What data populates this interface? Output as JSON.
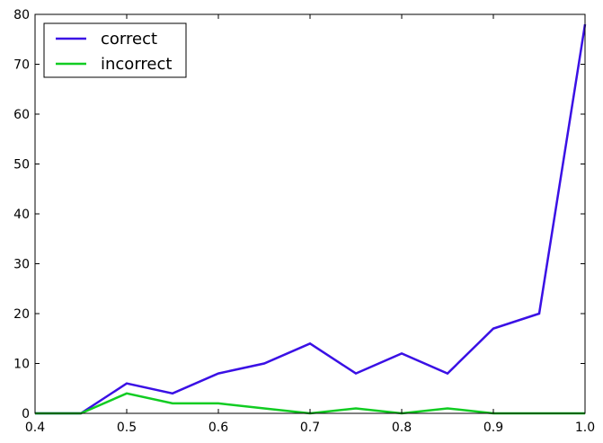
{
  "chart_data": {
    "type": "line",
    "title": "",
    "xlabel": "",
    "ylabel": "",
    "xlim": [
      0.4,
      1.0
    ],
    "ylim": [
      0,
      80
    ],
    "xticks": [
      0.4,
      0.5,
      0.6,
      0.7,
      0.8,
      0.9,
      1.0
    ],
    "xtick_labels": [
      "0.4",
      "0.5",
      "0.6",
      "0.7",
      "0.8",
      "0.9",
      "1.0"
    ],
    "yticks": [
      0,
      10,
      20,
      30,
      40,
      50,
      60,
      70,
      80
    ],
    "ytick_labels": [
      "0",
      "10",
      "20",
      "30",
      "40",
      "50",
      "60",
      "70",
      "80"
    ],
    "grid": false,
    "legend_position": "top-left",
    "x": [
      0.4,
      0.45,
      0.5,
      0.55,
      0.6,
      0.65,
      0.7,
      0.75,
      0.8,
      0.85,
      0.9,
      0.95,
      1.0
    ],
    "series": [
      {
        "name": "correct",
        "color": "#3a10e5",
        "values": [
          0,
          0,
          6,
          4,
          8,
          10,
          14,
          8,
          12,
          8,
          17,
          20,
          78
        ]
      },
      {
        "name": "incorrect",
        "color": "#11cc22",
        "values": [
          0,
          0,
          4,
          2,
          2,
          1,
          0,
          1,
          0,
          1,
          0,
          0,
          0
        ]
      }
    ]
  }
}
